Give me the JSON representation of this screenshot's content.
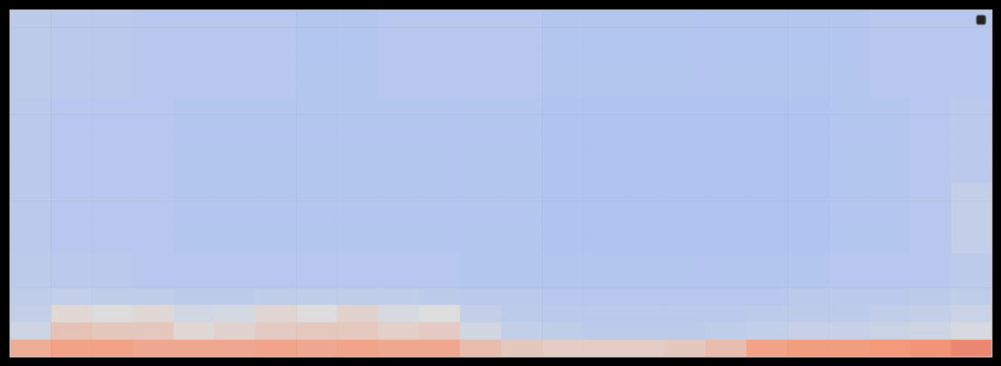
{
  "chart_data": {
    "type": "heatmap",
    "tick_labels": false,
    "color_range": [
      0,
      1
    ],
    "cells": [
      [
        0.4,
        0.39,
        0.39,
        0.38,
        0.38,
        0.38,
        0.38,
        0.37,
        0.37,
        0.38,
        0.38,
        0.38,
        0.38,
        0.37,
        0.37,
        0.37,
        0.37,
        0.37,
        0.37,
        0.37,
        0.37,
        0.38,
        0.38,
        0.38
      ],
      [
        0.4,
        0.39,
        0.39,
        0.38,
        0.38,
        0.38,
        0.38,
        0.37,
        0.37,
        0.38,
        0.38,
        0.38,
        0.38,
        0.37,
        0.37,
        0.37,
        0.37,
        0.37,
        0.37,
        0.37,
        0.37,
        0.38,
        0.38,
        0.38
      ],
      [
        0.4,
        0.39,
        0.39,
        0.38,
        0.38,
        0.38,
        0.38,
        0.37,
        0.37,
        0.38,
        0.38,
        0.38,
        0.38,
        0.37,
        0.37,
        0.37,
        0.37,
        0.37,
        0.37,
        0.37,
        0.37,
        0.38,
        0.38,
        0.38
      ],
      [
        0.4,
        0.39,
        0.39,
        0.38,
        0.38,
        0.38,
        0.38,
        0.37,
        0.37,
        0.38,
        0.38,
        0.38,
        0.38,
        0.37,
        0.37,
        0.37,
        0.37,
        0.37,
        0.37,
        0.37,
        0.37,
        0.38,
        0.38,
        0.38
      ],
      [
        0.4,
        0.39,
        0.39,
        0.38,
        0.38,
        0.38,
        0.38,
        0.37,
        0.37,
        0.38,
        0.38,
        0.38,
        0.38,
        0.37,
        0.37,
        0.37,
        0.37,
        0.37,
        0.37,
        0.37,
        0.37,
        0.38,
        0.38,
        0.38
      ],
      [
        0.39,
        0.38,
        0.38,
        0.38,
        0.37,
        0.37,
        0.37,
        0.37,
        0.37,
        0.37,
        0.37,
        0.37,
        0.37,
        0.36,
        0.36,
        0.36,
        0.36,
        0.36,
        0.36,
        0.36,
        0.37,
        0.37,
        0.38,
        0.39
      ],
      [
        0.39,
        0.38,
        0.38,
        0.38,
        0.37,
        0.37,
        0.37,
        0.37,
        0.37,
        0.37,
        0.37,
        0.37,
        0.37,
        0.36,
        0.36,
        0.36,
        0.36,
        0.36,
        0.36,
        0.36,
        0.37,
        0.37,
        0.38,
        0.39
      ],
      [
        0.39,
        0.38,
        0.38,
        0.38,
        0.37,
        0.37,
        0.37,
        0.37,
        0.37,
        0.37,
        0.37,
        0.37,
        0.37,
        0.36,
        0.36,
        0.36,
        0.36,
        0.36,
        0.36,
        0.36,
        0.37,
        0.37,
        0.38,
        0.39
      ],
      [
        0.39,
        0.38,
        0.38,
        0.38,
        0.37,
        0.37,
        0.37,
        0.37,
        0.37,
        0.37,
        0.37,
        0.37,
        0.37,
        0.36,
        0.36,
        0.36,
        0.36,
        0.36,
        0.36,
        0.36,
        0.37,
        0.37,
        0.38,
        0.39
      ],
      [
        0.39,
        0.38,
        0.38,
        0.38,
        0.37,
        0.37,
        0.37,
        0.37,
        0.37,
        0.37,
        0.37,
        0.37,
        0.37,
        0.36,
        0.36,
        0.36,
        0.36,
        0.36,
        0.36,
        0.36,
        0.37,
        0.37,
        0.38,
        0.39
      ],
      [
        0.39,
        0.38,
        0.38,
        0.38,
        0.37,
        0.37,
        0.37,
        0.37,
        0.37,
        0.37,
        0.37,
        0.37,
        0.37,
        0.36,
        0.36,
        0.36,
        0.36,
        0.36,
        0.36,
        0.36,
        0.37,
        0.37,
        0.38,
        0.42
      ],
      [
        0.39,
        0.38,
        0.38,
        0.38,
        0.37,
        0.37,
        0.37,
        0.37,
        0.37,
        0.37,
        0.37,
        0.37,
        0.37,
        0.36,
        0.36,
        0.36,
        0.36,
        0.36,
        0.36,
        0.36,
        0.37,
        0.37,
        0.38,
        0.42
      ],
      [
        0.39,
        0.38,
        0.38,
        0.38,
        0.37,
        0.37,
        0.37,
        0.37,
        0.37,
        0.37,
        0.37,
        0.37,
        0.37,
        0.36,
        0.36,
        0.36,
        0.36,
        0.36,
        0.36,
        0.36,
        0.37,
        0.37,
        0.38,
        0.42
      ],
      [
        0.39,
        0.38,
        0.38,
        0.38,
        0.37,
        0.37,
        0.37,
        0.37,
        0.37,
        0.37,
        0.37,
        0.37,
        0.37,
        0.36,
        0.36,
        0.36,
        0.36,
        0.36,
        0.36,
        0.36,
        0.37,
        0.37,
        0.38,
        0.42
      ],
      [
        0.4,
        0.39,
        0.39,
        0.38,
        0.38,
        0.38,
        0.38,
        0.38,
        0.38,
        0.38,
        0.38,
        0.37,
        0.37,
        0.37,
        0.37,
        0.37,
        0.37,
        0.37,
        0.37,
        0.37,
        0.38,
        0.38,
        0.38,
        0.4
      ],
      [
        0.4,
        0.39,
        0.39,
        0.38,
        0.38,
        0.38,
        0.38,
        0.38,
        0.38,
        0.38,
        0.38,
        0.37,
        0.37,
        0.37,
        0.37,
        0.37,
        0.37,
        0.37,
        0.37,
        0.37,
        0.38,
        0.38,
        0.38,
        0.4
      ],
      [
        0.41,
        0.42,
        0.41,
        0.41,
        0.4,
        0.4,
        0.41,
        0.41,
        0.41,
        0.41,
        0.4,
        0.39,
        0.39,
        0.38,
        0.38,
        0.38,
        0.38,
        0.38,
        0.38,
        0.39,
        0.39,
        0.39,
        0.4,
        0.41
      ],
      [
        0.42,
        0.52,
        0.5,
        0.52,
        0.46,
        0.47,
        0.53,
        0.5,
        0.54,
        0.48,
        0.5,
        0.42,
        0.4,
        0.39,
        0.39,
        0.39,
        0.39,
        0.39,
        0.4,
        0.4,
        0.4,
        0.41,
        0.42,
        0.44
      ],
      [
        0.45,
        0.6,
        0.58,
        0.58,
        0.52,
        0.54,
        0.57,
        0.58,
        0.58,
        0.55,
        0.57,
        0.46,
        0.42,
        0.41,
        0.4,
        0.4,
        0.4,
        0.41,
        0.42,
        0.43,
        0.43,
        0.44,
        0.45,
        0.48
      ],
      [
        0.68,
        0.72,
        0.72,
        0.7,
        0.7,
        0.7,
        0.71,
        0.7,
        0.71,
        0.7,
        0.7,
        0.62,
        0.58,
        0.56,
        0.56,
        0.56,
        0.58,
        0.62,
        0.72,
        0.74,
        0.74,
        0.75,
        0.76,
        0.78
      ]
    ]
  }
}
